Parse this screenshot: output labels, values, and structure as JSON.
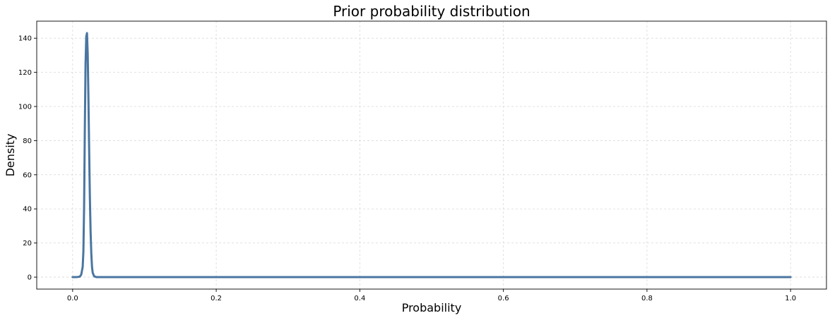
{
  "chart_data": {
    "type": "line",
    "title": "Prior probability distribution",
    "xlabel": "Probability",
    "ylabel": "Density",
    "xlim": [
      -0.05,
      1.05
    ],
    "ylim": [
      -7,
      150
    ],
    "xticks": [
      0.0,
      0.2,
      0.4,
      0.6,
      0.8,
      1.0
    ],
    "xtick_labels": [
      "0.0",
      "0.2",
      "0.4",
      "0.6",
      "0.8",
      "1.0"
    ],
    "yticks": [
      0,
      20,
      40,
      60,
      80,
      100,
      120,
      140
    ],
    "ytick_labels": [
      "0",
      "20",
      "40",
      "60",
      "80",
      "100",
      "120",
      "140"
    ],
    "grid": true,
    "series": [
      {
        "color": "#4a76a0",
        "x": [
          0.0,
          0.005,
          0.01,
          0.012,
          0.014,
          0.015,
          0.016,
          0.017,
          0.018,
          0.019,
          0.02,
          0.021,
          0.022,
          0.023,
          0.024,
          0.025,
          0.026,
          0.027,
          0.028,
          0.03,
          0.033,
          0.04,
          0.05,
          0.1,
          0.2,
          0.4,
          0.6,
          0.8,
          1.0
        ],
        "y": [
          0,
          0,
          0.3,
          1.5,
          6,
          15,
          42,
          87,
          125,
          141,
          143,
          131,
          105,
          75,
          47,
          27,
          14,
          6,
          2.5,
          0.5,
          0.05,
          0,
          0,
          0,
          0,
          0,
          0,
          0,
          0
        ]
      }
    ]
  }
}
